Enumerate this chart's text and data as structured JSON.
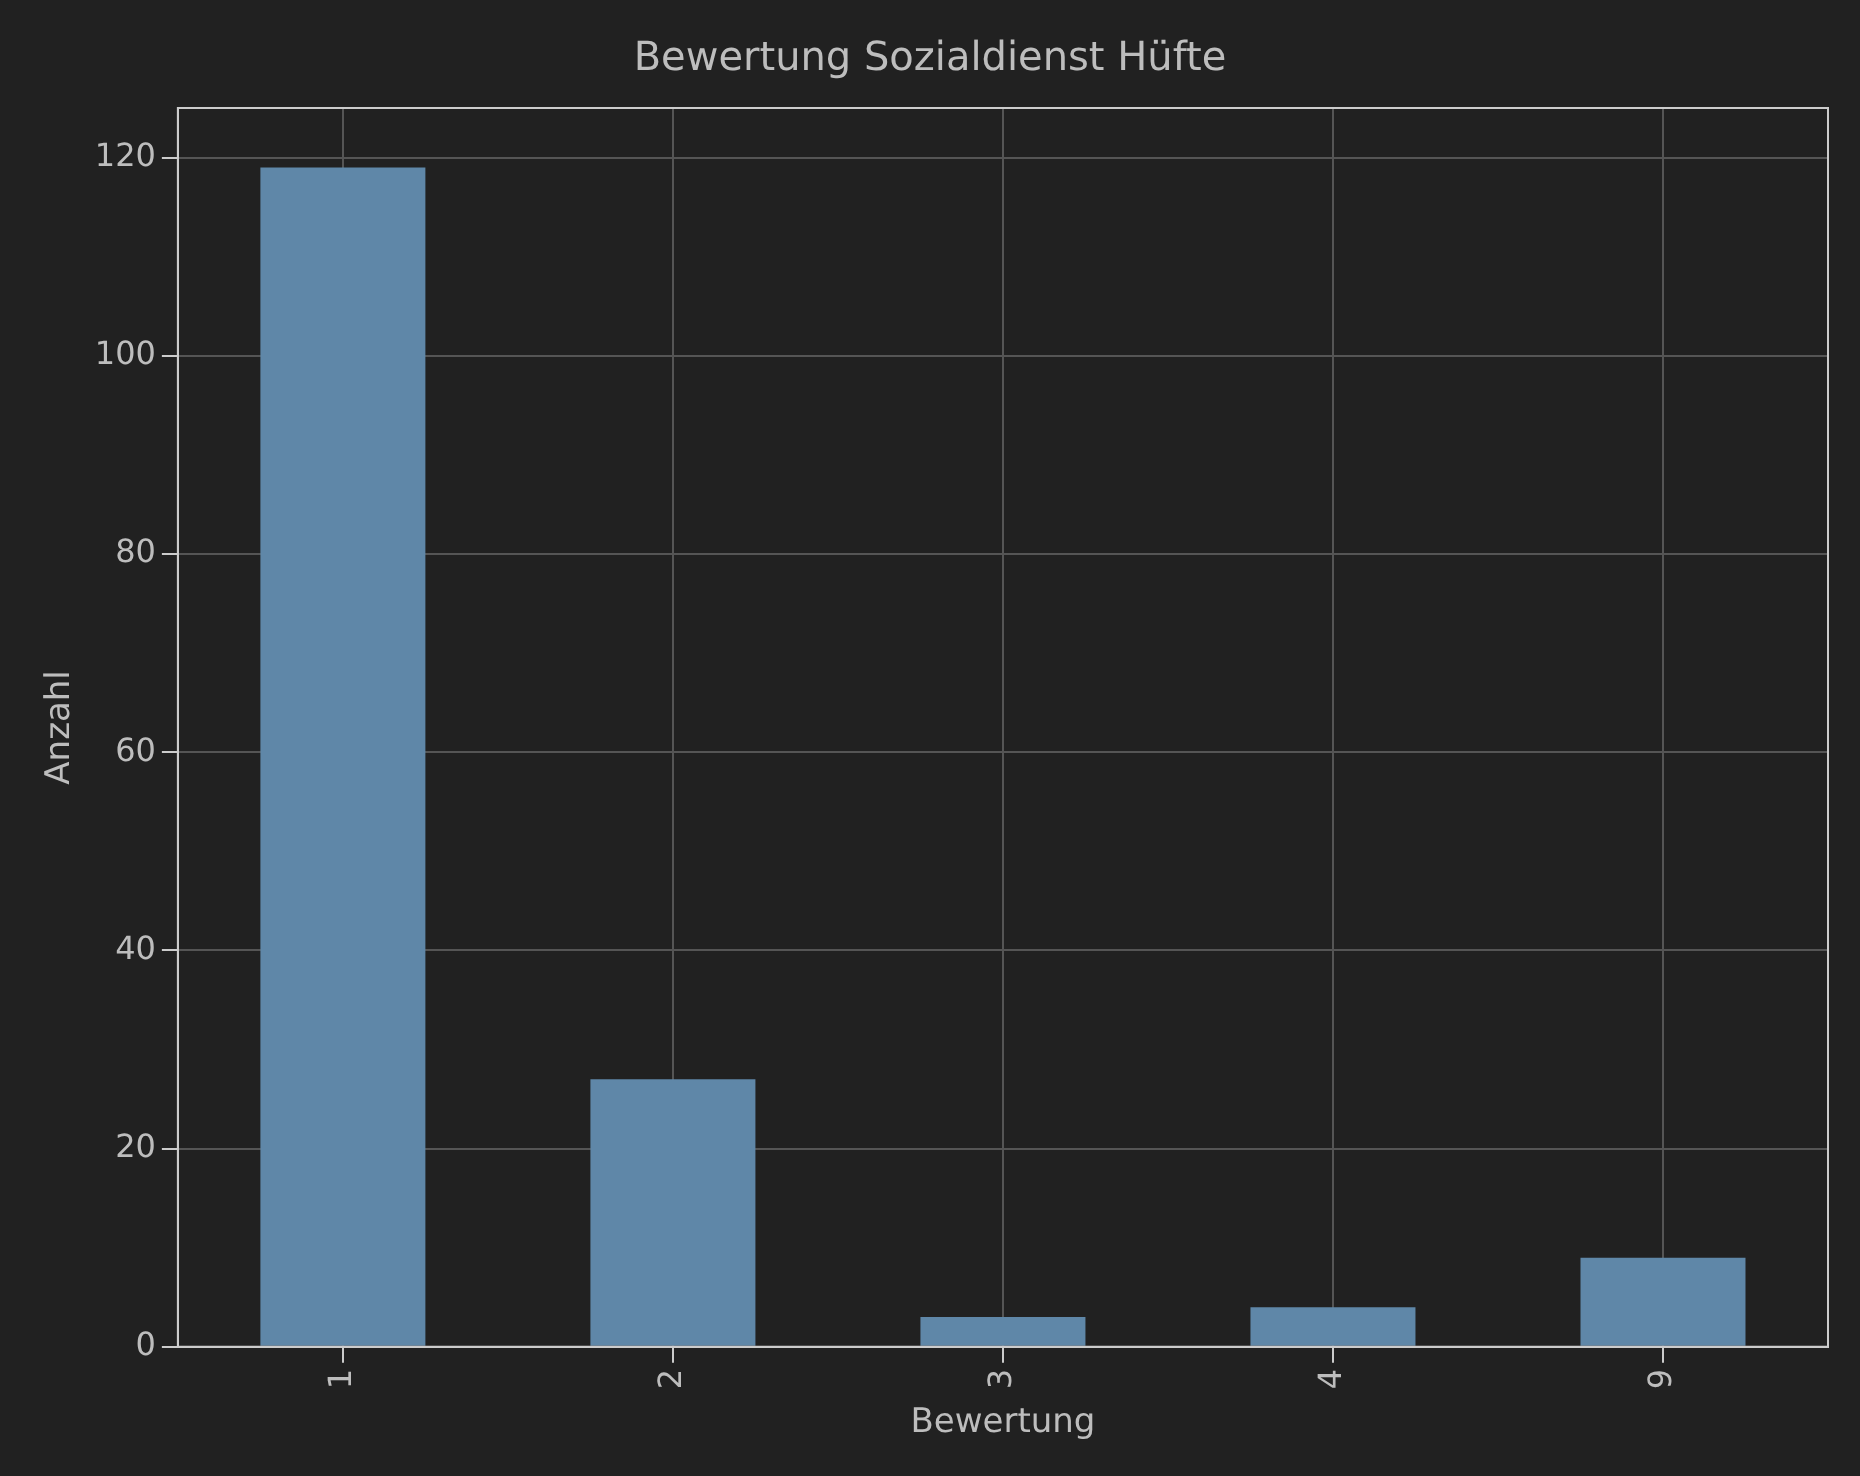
{
  "chart_data": {
    "type": "bar",
    "title": "Bewertung Sozialdienst Hüfte",
    "xlabel": "Bewertung",
    "ylabel": "Anzahl",
    "categories": [
      "1",
      "2",
      "3",
      "4",
      "9"
    ],
    "values": [
      119,
      27,
      3,
      4,
      9
    ],
    "color": "#5f87a8",
    "ylim": [
      0,
      125
    ],
    "yticks": [
      0,
      20,
      40,
      60,
      80,
      100,
      120
    ],
    "grid": true
  }
}
